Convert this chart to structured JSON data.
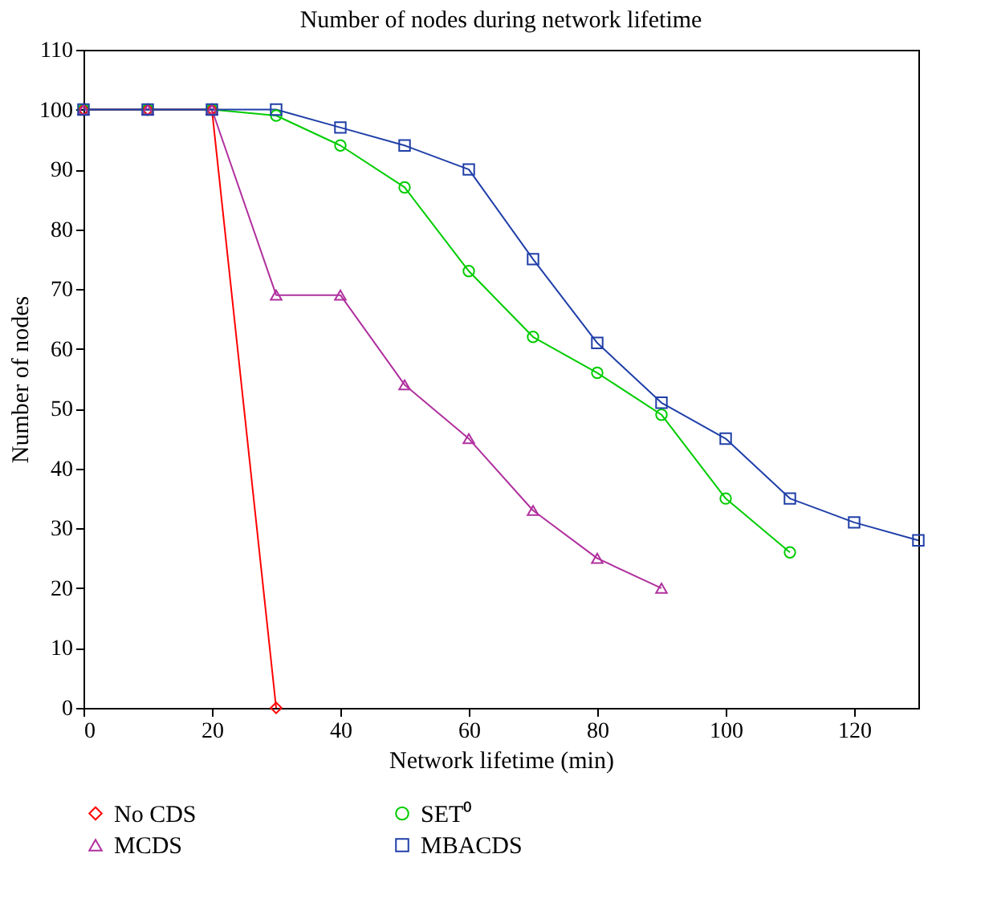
{
  "chart_data": {
    "type": "line",
    "title": "Number of nodes during network lifetime",
    "xlabel": "Network lifetime (min)",
    "ylabel": "Number of nodes",
    "xlim": [
      0,
      130
    ],
    "xticks": [
      0,
      20,
      40,
      60,
      80,
      100,
      120
    ],
    "ylim": [
      0,
      110
    ],
    "yticks": [
      0,
      10,
      20,
      30,
      40,
      50,
      60,
      70,
      80,
      90,
      100,
      110
    ],
    "legend": "bottom",
    "series": [
      {
        "name": "No CDS",
        "color": "#ff0000",
        "marker": "diamond",
        "x": [
          0,
          10,
          20,
          30
        ],
        "values": [
          100,
          100,
          100,
          0
        ]
      },
      {
        "name": "SET⁰",
        "color": "#00cc00",
        "marker": "circle",
        "x": [
          0,
          10,
          20,
          30,
          40,
          50,
          60,
          70,
          80,
          90,
          100,
          110
        ],
        "values": [
          100,
          100,
          100,
          99,
          94,
          87,
          73,
          62,
          56,
          49,
          35,
          26
        ]
      },
      {
        "name": "MCDS",
        "color": "#b0309e",
        "marker": "triangle",
        "x": [
          0,
          10,
          20,
          30,
          40,
          50,
          60,
          70,
          80,
          90
        ],
        "values": [
          100,
          100,
          100,
          69,
          69,
          54,
          45,
          33,
          25,
          20
        ]
      },
      {
        "name": "MBACDS",
        "color": "#1f3fa8",
        "marker": "square",
        "x": [
          0,
          10,
          20,
          30,
          40,
          50,
          60,
          70,
          80,
          90,
          100,
          110,
          120,
          130
        ],
        "values": [
          100,
          100,
          100,
          100,
          97,
          94,
          90,
          75,
          61,
          51,
          45,
          35,
          31,
          28
        ]
      }
    ]
  }
}
